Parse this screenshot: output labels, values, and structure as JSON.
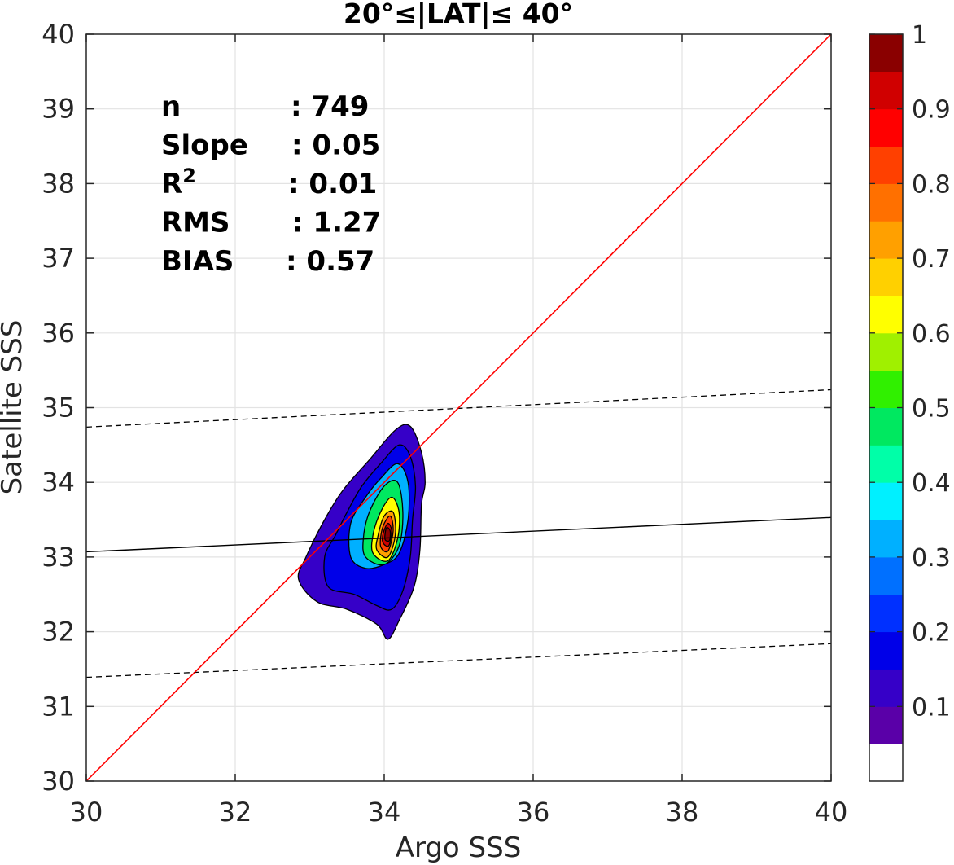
{
  "chart_data": {
    "type": "contour",
    "title": "20°≤|LAT|≤ 40°",
    "xlabel": "Argo SSS",
    "ylabel": "Satellite SSS",
    "xlim": [
      30,
      40
    ],
    "ylim": [
      30,
      40
    ],
    "xticks": [
      30,
      32,
      34,
      36,
      38,
      40
    ],
    "yticks": [
      30,
      31,
      32,
      33,
      34,
      35,
      36,
      37,
      38,
      39,
      40
    ],
    "grid": true,
    "stats": [
      {
        "key": "n",
        "value": ": 749"
      },
      {
        "key": "Slope",
        "value": ": 0.05"
      },
      {
        "key": "R",
        "sup": "2",
        "value": ": 0.01"
      },
      {
        "key": "RMS",
        "value": ": 1.27"
      },
      {
        "key": "BIAS",
        "value": ": 0.57"
      }
    ],
    "reference_line": {
      "name": "1:1",
      "color": "#ff0000",
      "x": [
        30,
        40
      ],
      "y": [
        30,
        40
      ]
    },
    "fit_line": {
      "color": "#000000",
      "x": [
        30,
        40
      ],
      "y": [
        33.07,
        33.53
      ]
    },
    "bound_lines": [
      {
        "style": "dashed",
        "x": [
          30,
          40
        ],
        "y": [
          34.74,
          35.24
        ]
      },
      {
        "style": "dashed",
        "x": [
          30,
          40
        ],
        "y": [
          31.39,
          31.84
        ]
      }
    ],
    "density_peak": {
      "x": 34.05,
      "y": 33.3
    },
    "contours": [
      {
        "level": 0.05,
        "points": [
          [
            33.1,
            32.4
          ],
          [
            33.5,
            32.3
          ],
          [
            33.9,
            32.1
          ],
          [
            34.05,
            31.9
          ],
          [
            34.2,
            32.15
          ],
          [
            34.4,
            32.6
          ],
          [
            34.48,
            33.1
          ],
          [
            34.5,
            33.7
          ],
          [
            34.55,
            34.0
          ],
          [
            34.5,
            34.4
          ],
          [
            34.35,
            34.75
          ],
          [
            34.15,
            34.7
          ],
          [
            33.8,
            34.3
          ],
          [
            33.45,
            33.9
          ],
          [
            33.2,
            33.5
          ],
          [
            32.95,
            33.0
          ],
          [
            32.85,
            32.7
          ]
        ]
      },
      {
        "level": 0.15,
        "points": [
          [
            33.25,
            32.6
          ],
          [
            33.6,
            32.5
          ],
          [
            33.9,
            32.35
          ],
          [
            34.1,
            32.3
          ],
          [
            34.25,
            32.55
          ],
          [
            34.35,
            33.0
          ],
          [
            34.38,
            33.5
          ],
          [
            34.42,
            33.95
          ],
          [
            34.35,
            34.35
          ],
          [
            34.2,
            34.5
          ],
          [
            33.95,
            34.25
          ],
          [
            33.7,
            33.95
          ],
          [
            33.5,
            33.6
          ],
          [
            33.35,
            33.3
          ],
          [
            33.2,
            33.0
          ]
        ]
      },
      {
        "level": 0.25,
        "points": [
          [
            33.55,
            33.0
          ],
          [
            33.75,
            32.85
          ],
          [
            34.0,
            32.9
          ],
          [
            34.2,
            33.05
          ],
          [
            34.32,
            33.5
          ],
          [
            34.32,
            34.0
          ],
          [
            34.18,
            34.25
          ],
          [
            33.95,
            34.05
          ],
          [
            33.75,
            33.8
          ],
          [
            33.55,
            33.45
          ]
        ]
      },
      {
        "level": 0.4,
        "points": [
          [
            33.75,
            33.0
          ],
          [
            34.0,
            32.9
          ],
          [
            34.2,
            33.15
          ],
          [
            34.25,
            33.6
          ],
          [
            34.18,
            34.0
          ],
          [
            34.0,
            33.95
          ],
          [
            33.8,
            33.6
          ],
          [
            33.72,
            33.25
          ]
        ]
      },
      {
        "level": 0.55,
        "points": [
          [
            33.85,
            33.05
          ],
          [
            34.05,
            32.95
          ],
          [
            34.18,
            33.25
          ],
          [
            34.2,
            33.6
          ],
          [
            34.1,
            33.8
          ],
          [
            33.95,
            33.6
          ],
          [
            33.85,
            33.3
          ]
        ]
      },
      {
        "level": 0.65,
        "points": [
          [
            33.9,
            33.1
          ],
          [
            34.05,
            33.0
          ],
          [
            34.15,
            33.3
          ],
          [
            34.12,
            33.6
          ],
          [
            34.0,
            33.55
          ],
          [
            33.92,
            33.3
          ]
        ]
      },
      {
        "level": 0.75,
        "points": [
          [
            33.95,
            33.15
          ],
          [
            34.05,
            33.08
          ],
          [
            34.12,
            33.35
          ],
          [
            34.08,
            33.55
          ],
          [
            33.98,
            33.4
          ]
        ]
      },
      {
        "level": 0.85,
        "points": [
          [
            33.98,
            33.2
          ],
          [
            34.06,
            33.15
          ],
          [
            34.1,
            33.35
          ],
          [
            34.05,
            33.45
          ],
          [
            33.99,
            33.33
          ]
        ]
      },
      {
        "level": 0.95,
        "points": [
          [
            34.01,
            33.24
          ],
          [
            34.07,
            33.22
          ],
          [
            34.08,
            33.35
          ],
          [
            34.03,
            33.39
          ]
        ]
      }
    ],
    "colorbar": {
      "ticks": [
        "0.1",
        "0.2",
        "0.3",
        "0.4",
        "0.5",
        "0.6",
        "0.7",
        "0.8",
        "0.9",
        "1"
      ],
      "colors": [
        "#ffffff",
        "#5a00a8",
        "#3600c8",
        "#0000e8",
        "#0030ff",
        "#0070ff",
        "#00b0ff",
        "#00f0ff",
        "#00ffa8",
        "#00e860",
        "#30f000",
        "#a0f000",
        "#ffff00",
        "#ffd000",
        "#ffa000",
        "#ff7000",
        "#ff4000",
        "#ff0000",
        "#d00000",
        "#8a0000"
      ]
    }
  }
}
